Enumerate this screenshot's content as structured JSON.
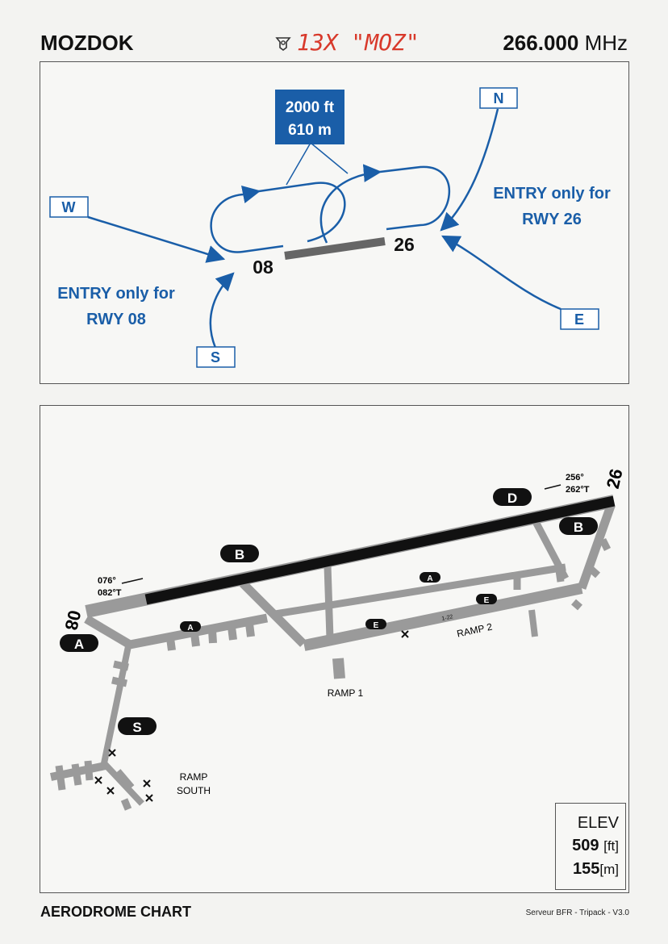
{
  "header": {
    "airport": "MOZDOK",
    "tacan": "13X \"MOZ\"",
    "frequency": "266.000",
    "frequency_unit": "MHz"
  },
  "pattern_panel": {
    "altitude_ft": "2000 ft",
    "altitude_m": "610 m",
    "entry_labels": [
      "W",
      "N",
      "E",
      "S"
    ],
    "runway_left": "08",
    "runway_right": "26",
    "note_right_line1": "ENTRY only for",
    "note_right_line2": "RWY 26",
    "note_left_line1": "ENTRY only for",
    "note_left_line2": "RWY 08"
  },
  "chart_panel": {
    "heading_26_mag": "256°",
    "heading_26_true": "262°T",
    "heading_08_mag": "076°",
    "heading_08_true": "082°T",
    "runway_end_26": "26",
    "runway_end_08": "08",
    "taxiways": [
      "A",
      "B",
      "D",
      "E",
      "S"
    ],
    "taxiway_small_a": "A",
    "taxiway_small_e": "E",
    "marking": "1-22",
    "ramp1": "RAMP 1",
    "ramp2": "RAMP 2",
    "ramp_south_1": "RAMP",
    "ramp_south_2": "SOUTH",
    "elevation": {
      "label": "ELEV",
      "feet": "509",
      "feet_unit": "[ft]",
      "meters": "155",
      "meters_unit": "[m]"
    }
  },
  "footer": {
    "chart_type": "AERODROME CHART",
    "credit": "Serveur BFR - Tripack - V3.0"
  },
  "colors": {
    "accent_blue": "#1a5ea8",
    "tacan_red": "#d8392b",
    "pavement": "#9a9a9a",
    "runway": "#111111"
  }
}
